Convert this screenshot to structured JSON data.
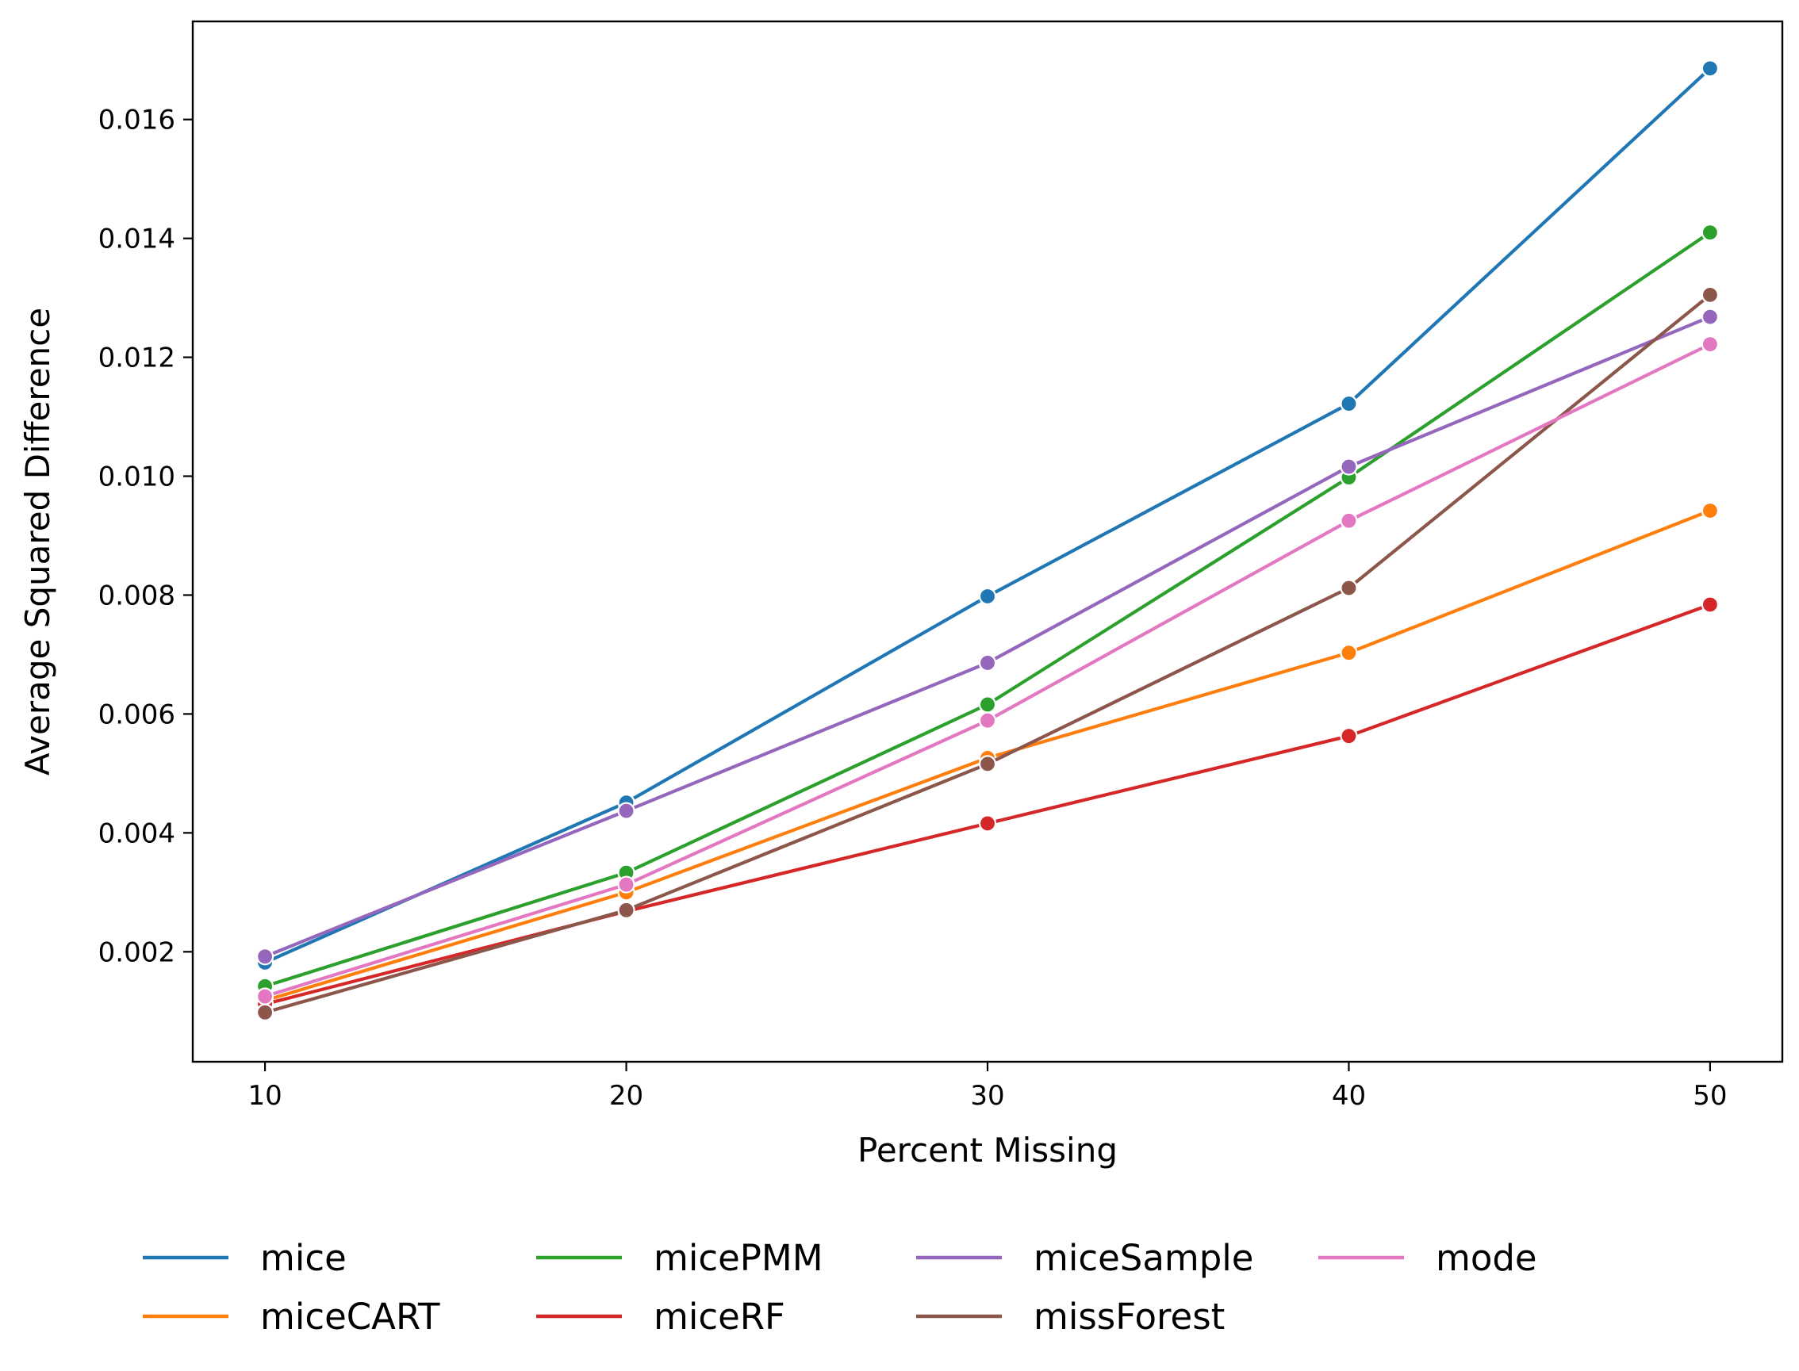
{
  "chart_data": {
    "type": "line",
    "title": "",
    "xlabel": "Percent Missing",
    "ylabel": "Average Squared Difference",
    "x": [
      10,
      20,
      30,
      40,
      50
    ],
    "xticks": [
      "10",
      "20",
      "30",
      "40",
      "50"
    ],
    "xlim": [
      8,
      52
    ],
    "yticks": [
      "0.002",
      "0.004",
      "0.006",
      "0.008",
      "0.010",
      "0.012",
      "0.014",
      "0.016"
    ],
    "ylim": [
      0.00015,
      0.01765
    ],
    "grid": false,
    "legend_position": "bottom",
    "series": [
      {
        "name": "mice",
        "color": "#1f77b4",
        "values": [
          0.00182,
          0.00451,
          0.00798,
          0.01122,
          0.01686
        ]
      },
      {
        "name": "miceCART",
        "color": "#ff7f0e",
        "values": [
          0.00118,
          0.003,
          0.00526,
          0.00703,
          0.00942
        ]
      },
      {
        "name": "micePMM",
        "color": "#2ca02c",
        "values": [
          0.00142,
          0.00333,
          0.00616,
          0.00998,
          0.0141
        ]
      },
      {
        "name": "miceRF",
        "color": "#d62728",
        "values": [
          0.00112,
          0.00268,
          0.00416,
          0.00563,
          0.00784
        ]
      },
      {
        "name": "miceSample",
        "color": "#9467bd",
        "values": [
          0.00192,
          0.00437,
          0.00686,
          0.01016,
          0.01268
        ]
      },
      {
        "name": "missForest",
        "color": "#8c564b",
        "values": [
          0.00098,
          0.0027,
          0.00516,
          0.00812,
          0.01305
        ]
      },
      {
        "name": "mode",
        "color": "#e377c2",
        "values": [
          0.00125,
          0.00313,
          0.00589,
          0.00925,
          0.01222
        ]
      }
    ]
  }
}
